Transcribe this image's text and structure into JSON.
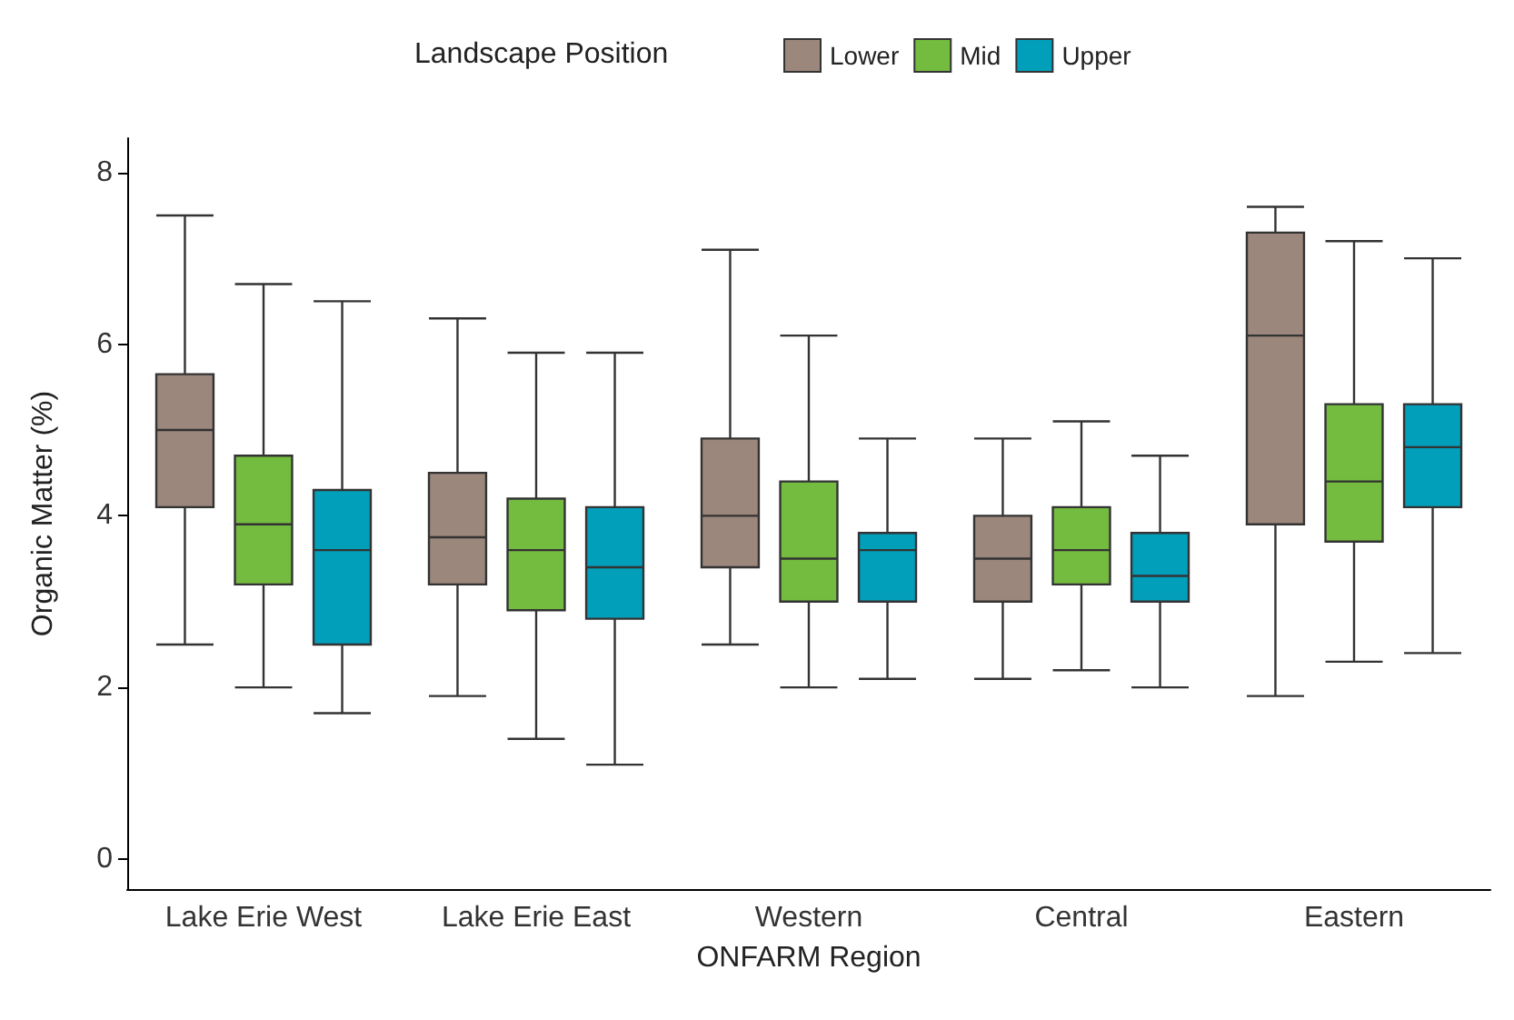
{
  "chart_data": {
    "type": "box",
    "xlabel": "ONFARM Region",
    "ylabel": "Organic Matter (%)",
    "legend_title": "Landscape Position",
    "legend": "top",
    "grid": false,
    "categories": [
      "Lake Erie West",
      "Lake Erie East",
      "Western",
      "Central",
      "Eastern"
    ],
    "ylim": [
      -0.35,
      8.4
    ],
    "yticks": [
      0,
      2,
      4,
      6,
      8
    ],
    "series": [
      {
        "name": "Lower",
        "color": "#9c877c",
        "boxes": [
          {
            "low": 2.5,
            "q1": 4.1,
            "median": 5.0,
            "q3": 5.65,
            "high": 7.5
          },
          {
            "low": 1.9,
            "q1": 3.2,
            "median": 3.75,
            "q3": 4.5,
            "high": 6.3
          },
          {
            "low": 2.5,
            "q1": 3.4,
            "median": 4.0,
            "q3": 4.9,
            "high": 7.1
          },
          {
            "low": 2.1,
            "q1": 3.0,
            "median": 3.5,
            "q3": 4.0,
            "high": 4.9
          },
          {
            "low": 1.9,
            "q1": 3.9,
            "median": 6.1,
            "q3": 7.3,
            "high": 7.6
          }
        ]
      },
      {
        "name": "Mid",
        "color": "#74bc40",
        "boxes": [
          {
            "low": 2.0,
            "q1": 3.2,
            "median": 3.9,
            "q3": 4.7,
            "high": 6.7
          },
          {
            "low": 1.4,
            "q1": 2.9,
            "median": 3.6,
            "q3": 4.2,
            "high": 5.9
          },
          {
            "low": 2.0,
            "q1": 3.0,
            "median": 3.5,
            "q3": 4.4,
            "high": 6.1
          },
          {
            "low": 2.2,
            "q1": 3.2,
            "median": 3.6,
            "q3": 4.1,
            "high": 5.1
          },
          {
            "low": 2.3,
            "q1": 3.7,
            "median": 4.4,
            "q3": 5.3,
            "high": 7.2
          }
        ]
      },
      {
        "name": "Upper",
        "color": "#029fbb",
        "boxes": [
          {
            "low": 1.7,
            "q1": 2.5,
            "median": 3.6,
            "q3": 4.3,
            "high": 6.5
          },
          {
            "low": 1.1,
            "q1": 2.8,
            "median": 3.4,
            "q3": 4.1,
            "high": 5.9
          },
          {
            "low": 2.1,
            "q1": 3.0,
            "median": 3.6,
            "q3": 3.8,
            "high": 4.9
          },
          {
            "low": 2.0,
            "q1": 3.0,
            "median": 3.3,
            "q3": 3.8,
            "high": 4.7
          },
          {
            "low": 2.4,
            "q1": 4.1,
            "median": 4.8,
            "q3": 5.3,
            "high": 7.0
          }
        ]
      }
    ]
  }
}
